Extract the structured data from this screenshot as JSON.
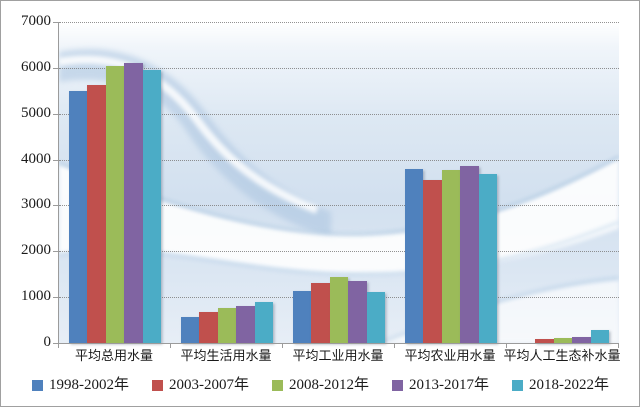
{
  "chart_data": {
    "type": "bar",
    "title": "",
    "categories": [
      "平均总用水量",
      "平均生活用水量",
      "平均工业用水量",
      "平均农业用水量",
      "平均人工生态补水量"
    ],
    "series": [
      {
        "name": "1998-2002年",
        "color": "#4F81BD",
        "values": [
          5500,
          570,
          1140,
          3800,
          0
        ]
      },
      {
        "name": "2003-2007年",
        "color": "#C0504D",
        "values": [
          5620,
          680,
          1310,
          3560,
          85
        ]
      },
      {
        "name": "2008-2012年",
        "color": "#9BBB59",
        "values": [
          6050,
          770,
          1440,
          3770,
          110
        ]
      },
      {
        "name": "2013-2017年",
        "color": "#8064A2",
        "values": [
          6100,
          800,
          1350,
          3850,
          140
        ]
      },
      {
        "name": "2018-2022年",
        "color": "#4BACC6",
        "values": [
          5950,
          890,
          1120,
          3690,
          280
        ]
      }
    ],
    "y_axis": {
      "min": 0,
      "max": 7000,
      "step": 1000,
      "tick_labels": [
        "0",
        "1000",
        "2000",
        "3000",
        "4000",
        "5000",
        "6000",
        "7000"
      ]
    },
    "ylim": [
      0,
      7000
    ],
    "xlabel": "",
    "ylabel": "",
    "grid": {
      "horizontal": true,
      "style": "dotted"
    },
    "legend": {
      "position": "bottom",
      "entries": [
        "1998-2002年",
        "2003-2007年",
        "2008-2012年",
        "2013-2017年",
        "2018-2022年"
      ]
    }
  },
  "colors": {
    "axis": "#9B9B9B",
    "gridline": "#7F7F7F",
    "text": "#1A1A1A",
    "frame_border": "#A0A0A0"
  }
}
